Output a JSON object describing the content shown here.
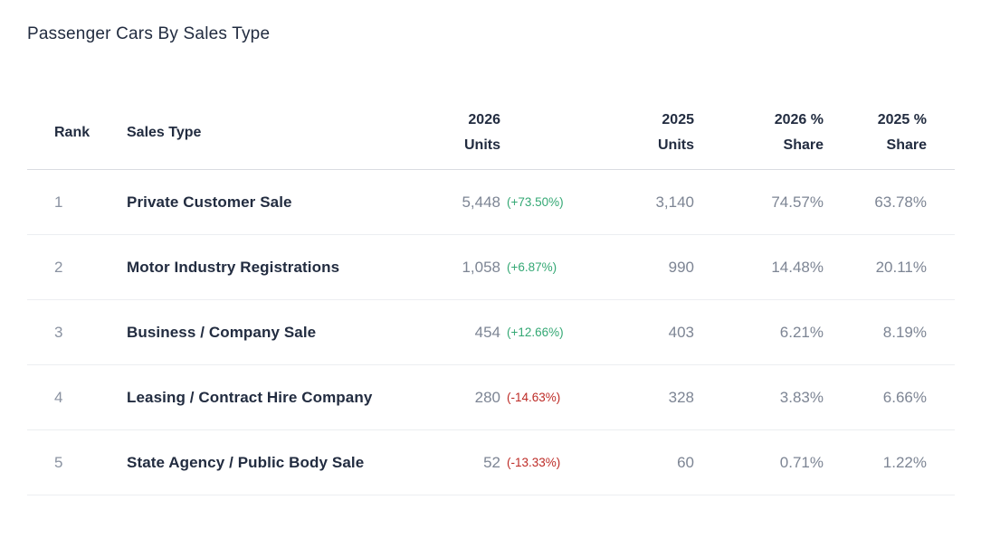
{
  "title": "Passenger Cars By Sales Type",
  "colors": {
    "title_text": "#222c40",
    "muted_value": "#7d8594",
    "positive_change": "#34a874",
    "negative_change": "#bd2b26"
  },
  "table": {
    "header": {
      "rank": "Rank",
      "sales_type": "Sales Type",
      "units_2026": [
        "2026",
        "Units"
      ],
      "units_2025": [
        "2025",
        "Units"
      ],
      "share_2026": [
        "2026 %",
        "Share"
      ],
      "share_2025": [
        "2025 %",
        "Share"
      ]
    },
    "rows": [
      {
        "rank": "1",
        "sales_type": "Private Customer Sale",
        "units_2026": "5,448",
        "change_2026": "(+73.50%)",
        "change_direction": "up",
        "units_2025": "3,140",
        "share_2026": "74.57%",
        "share_2025": "63.78%"
      },
      {
        "rank": "2",
        "sales_type": "Motor Industry Registrations",
        "units_2026": "1,058",
        "change_2026": "(+6.87%)",
        "change_direction": "up",
        "units_2025": "990",
        "share_2026": "14.48%",
        "share_2025": "20.11%"
      },
      {
        "rank": "3",
        "sales_type": "Business / Company Sale",
        "units_2026": "454",
        "change_2026": "(+12.66%)",
        "change_direction": "up",
        "units_2025": "403",
        "share_2026": "6.21%",
        "share_2025": "8.19%"
      },
      {
        "rank": "4",
        "sales_type": "Leasing / Contract Hire Company",
        "units_2026": "280",
        "change_2026": "(-14.63%)",
        "change_direction": "down",
        "units_2025": "328",
        "share_2026": "3.83%",
        "share_2025": "6.66%"
      },
      {
        "rank": "5",
        "sales_type": "State Agency / Public Body Sale",
        "units_2026": "52",
        "change_2026": "(-13.33%)",
        "change_direction": "down",
        "units_2025": "60",
        "share_2026": "0.71%",
        "share_2025": "1.22%"
      }
    ]
  }
}
